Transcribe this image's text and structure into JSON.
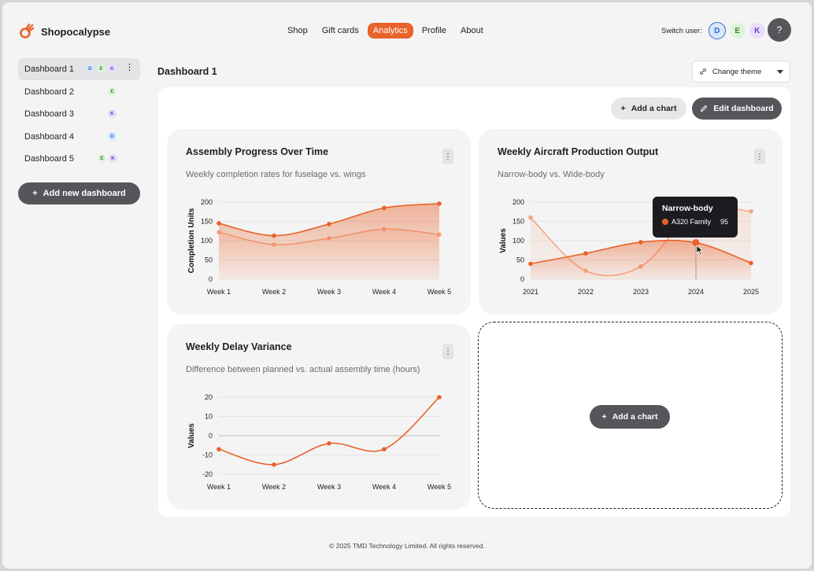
{
  "app": {
    "name": "Shopocalypse"
  },
  "nav": [
    {
      "label": "Shop",
      "active": false
    },
    {
      "label": "Gift cards",
      "active": false
    },
    {
      "label": "Analytics",
      "active": true
    },
    {
      "label": "Profile",
      "active": false
    },
    {
      "label": "About",
      "active": false
    }
  ],
  "switch_user": {
    "label": "Switch user:",
    "users": [
      "D",
      "E",
      "K"
    ]
  },
  "help": {
    "label": "?"
  },
  "sidebar": {
    "items": [
      {
        "label": "Dashboard 1",
        "badges": [
          "D",
          "E",
          "K"
        ],
        "active": true
      },
      {
        "label": "Dashboard 2",
        "badges": [
          "E"
        ],
        "active": false
      },
      {
        "label": "Dashboard 3",
        "badges": [
          "K"
        ],
        "active": false
      },
      {
        "label": "Dashboard 4",
        "badges": [
          "D"
        ],
        "active": false
      },
      {
        "label": "Dashboard 5",
        "badges": [
          "E",
          "K"
        ],
        "active": false
      }
    ],
    "add_label": "Add new dashboard"
  },
  "main": {
    "title": "Dashboard 1",
    "theme_label": "Change theme",
    "add_chart_label": "Add a chart",
    "edit_label": "Edit dashboard",
    "empty_add_label": "Add a chart"
  },
  "charts": {
    "c1": {
      "title": "Assembly Progress Over Time",
      "subtitle": "Weekly completion rates for fuselage vs. wings",
      "ylabel": "Completion Units"
    },
    "c2": {
      "title": "Weekly Aircraft Production Output",
      "subtitle": "Narrow-body vs. Wide-body",
      "ylabel": "Values"
    },
    "c3": {
      "title": "Weekly Delay Variance",
      "subtitle": "Difference between planned vs. actual assembly time (hours)",
      "ylabel": "Values"
    }
  },
  "tooltip": {
    "title": "Narrow-body",
    "series": "A320 Family",
    "value": "95"
  },
  "footer": {
    "text": "© 2025  TMD Technology Limited. All rights reserved."
  },
  "colors": {
    "accent": "#e8622a",
    "accent_light": "#f4a683",
    "dark_button": "#55555a"
  },
  "chart_data": [
    {
      "type": "area",
      "categories": [
        "Week 1",
        "Week 2",
        "Week 3",
        "Week 4",
        "Week 5"
      ],
      "ylim": [
        0,
        200
      ],
      "yticks": [
        0,
        50,
        100,
        150,
        200
      ],
      "series": [
        {
          "values": [
            145,
            113,
            143,
            185,
            196
          ],
          "color": "#e8622a"
        },
        {
          "values": [
            122,
            90,
            106,
            130,
            116
          ],
          "color": "#f4a683"
        }
      ],
      "title": "Assembly Progress Over Time",
      "ylabel": "Completion Units"
    },
    {
      "type": "area",
      "categories": [
        "2021",
        "2022",
        "2023",
        "2024",
        "2025"
      ],
      "ylim": [
        0,
        200
      ],
      "yticks": [
        0,
        50,
        100,
        150,
        200
      ],
      "series": [
        {
          "name": "Narrow-body",
          "values": [
            40,
            67,
            96,
            95,
            42
          ],
          "color": "#e8622a"
        },
        {
          "values": [
            160,
            22,
            33,
            178,
            176
          ],
          "color": "#f4a683"
        }
      ],
      "title": "Weekly Aircraft Production Output",
      "ylabel": "Values"
    },
    {
      "type": "line",
      "categories": [
        "Week 1",
        "Week 2",
        "Week 3",
        "Week 4",
        "Week 5"
      ],
      "ylim": [
        -20,
        20
      ],
      "yticks": [
        -20,
        -10,
        0,
        10,
        20
      ],
      "series": [
        {
          "values": [
            -7,
            -15,
            -4,
            -7,
            20
          ],
          "color": "#e8622a"
        }
      ],
      "title": "Weekly Delay Variance",
      "ylabel": "Values"
    }
  ]
}
